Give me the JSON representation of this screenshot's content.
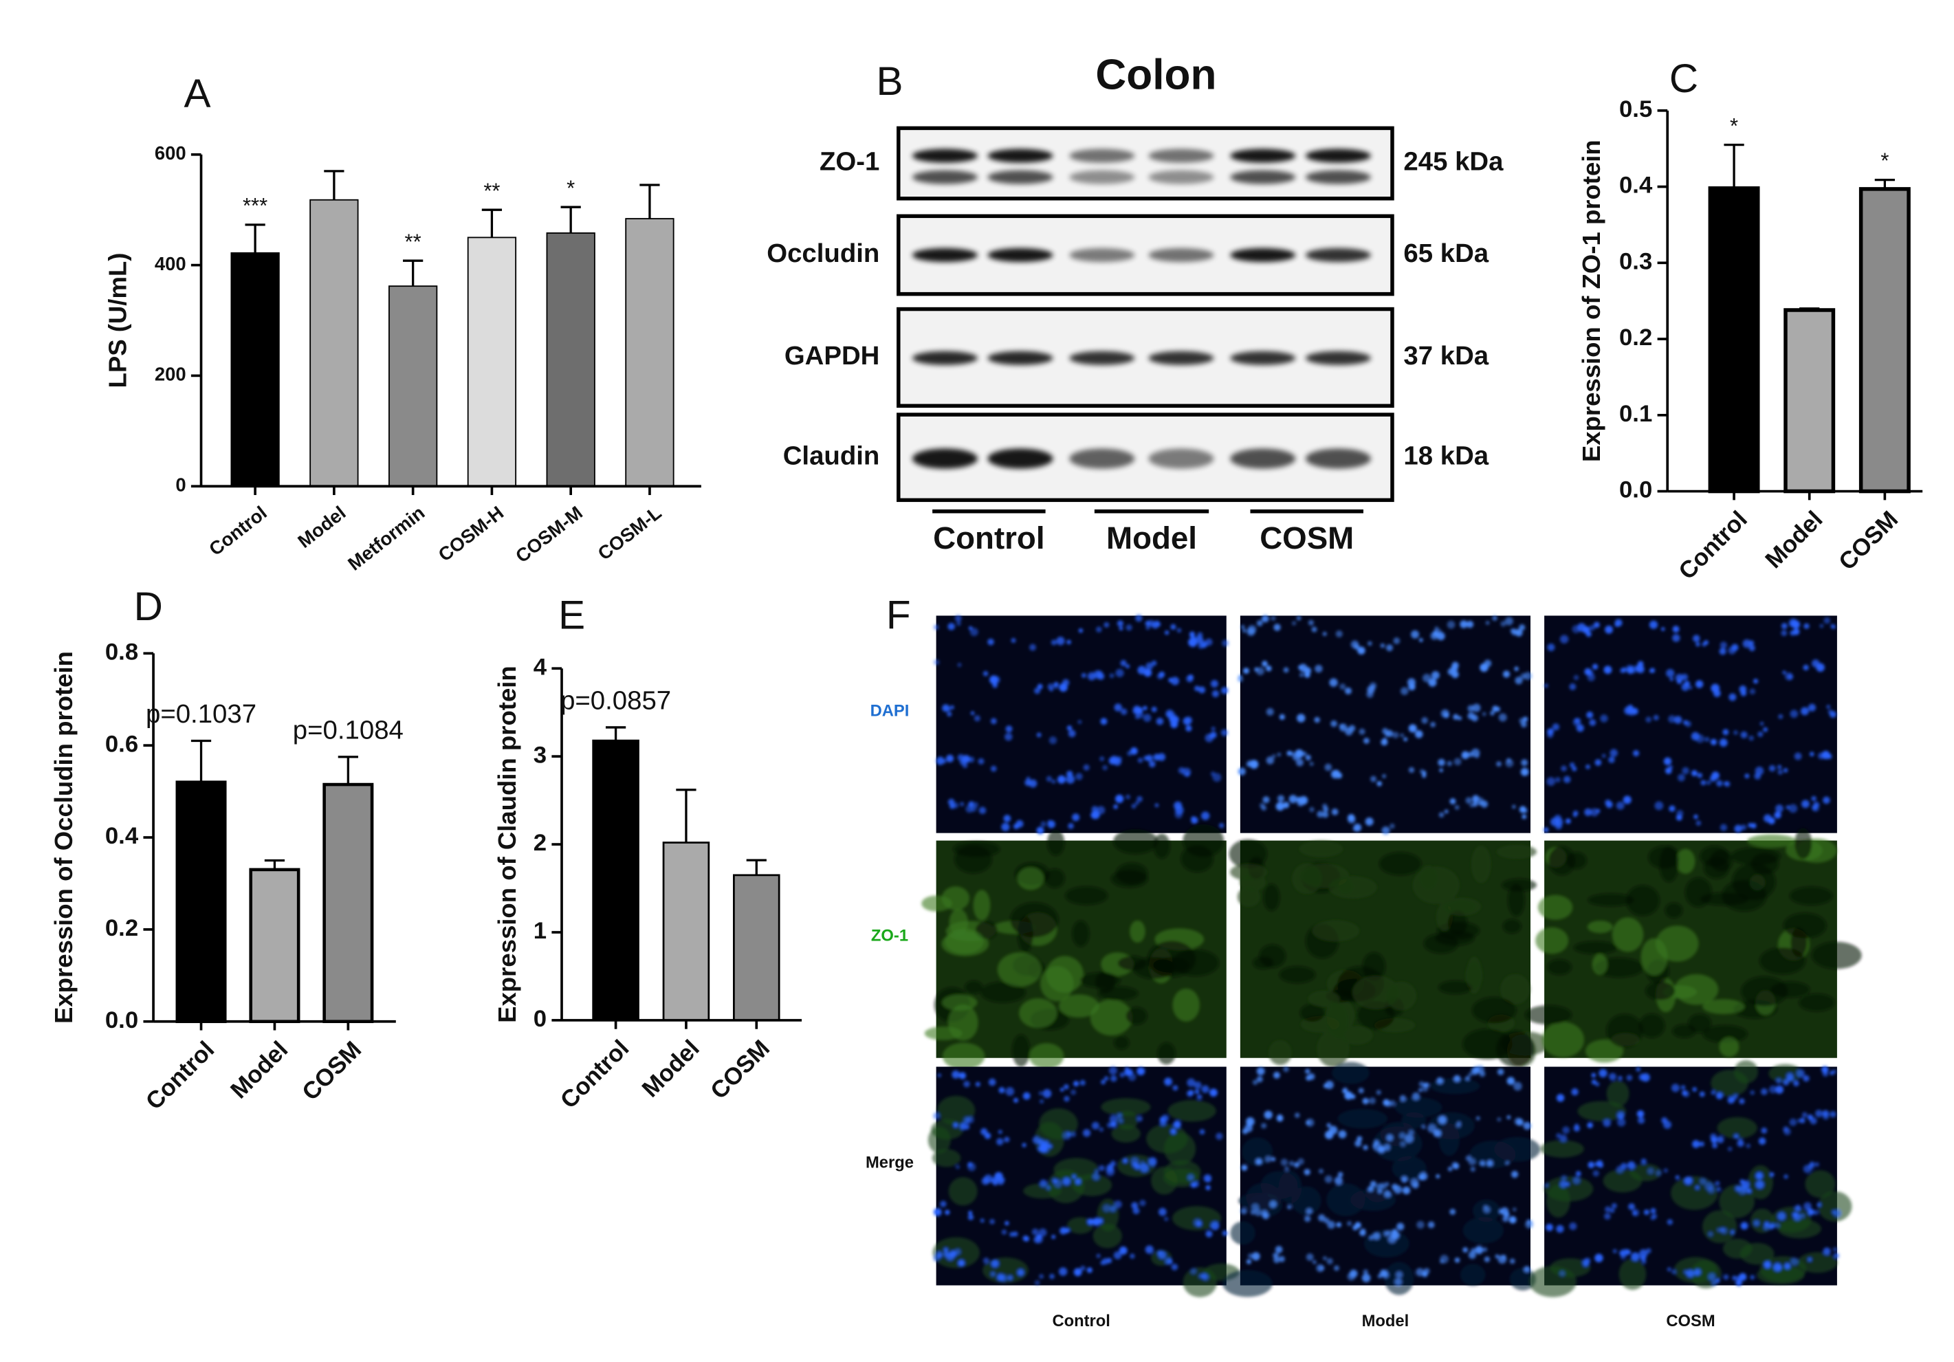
{
  "chart_data": [
    {
      "type": "bar",
      "panel_label": "A",
      "ylabel": "LPS (U/mL)",
      "categories": [
        "Control",
        "Model",
        "Metformin",
        "COSM-H",
        "COSM-M",
        "COSM-L"
      ],
      "values": [
        422,
        518,
        362,
        450,
        458,
        484
      ],
      "errors": [
        51,
        52,
        46,
        50,
        47,
        61
      ],
      "annotations": [
        "***",
        null,
        "**",
        "**",
        "*",
        null
      ],
      "colors": [
        "#000000",
        "#aaaaaa",
        "#8a8a8a",
        "#dcdcdc",
        "#6e6e6e",
        "#aaaaaa"
      ],
      "ylim": [
        0,
        600
      ],
      "yticks": [
        0,
        200,
        400,
        600
      ]
    },
    {
      "type": "bar",
      "panel_label": "C",
      "ylabel": "Expression of ZO-1 protein",
      "categories": [
        "Control",
        "Model",
        "COSM"
      ],
      "values": [
        0.398,
        0.238,
        0.397
      ],
      "errors": [
        0.057,
        0.002,
        0.012
      ],
      "annotations": [
        "*",
        null,
        "*"
      ],
      "colors": [
        "#000000",
        "#aaaaaa",
        "#8a8a8a"
      ],
      "ylim": [
        0,
        0.5
      ],
      "yticks": [
        {
          "value": 0,
          "label": "0.0"
        },
        0.1,
        0.2,
        0.3,
        0.4,
        0.5
      ]
    },
    {
      "type": "bar",
      "panel_label": "D",
      "ylabel": "Expression of Occludin protein",
      "categories": [
        "Control",
        "Model",
        "COSM"
      ],
      "values": [
        0.52,
        0.33,
        0.515
      ],
      "errors": [
        0.09,
        0.02,
        0.06
      ],
      "annotations": [
        "p=0.1037",
        null,
        "p=0.1084"
      ],
      "colors": [
        "#000000",
        "#aaaaaa",
        "#8a8a8a"
      ],
      "ylim": [
        0,
        0.8
      ],
      "yticks": [
        {
          "value": 0,
          "label": "0.0"
        },
        0.2,
        0.4,
        0.6,
        0.8
      ]
    },
    {
      "type": "bar",
      "panel_label": "E",
      "ylabel": "Expression of Claudin protein",
      "categories": [
        "Control",
        "Model",
        "COSM"
      ],
      "values": [
        3.18,
        2.02,
        1.65
      ],
      "errors": [
        0.15,
        0.6,
        0.17
      ],
      "annotations": [
        "p=0.0857",
        null,
        null
      ],
      "colors": [
        "#000000",
        "#aaaaaa",
        "#8a8a8a"
      ],
      "ylim": [
        0,
        4
      ],
      "yticks": [
        0,
        1,
        2,
        3,
        4
      ]
    }
  ],
  "blot": {
    "panel_label": "B",
    "title": "Colon",
    "rows": [
      {
        "protein": "ZO-1",
        "size": "245 kDa"
      },
      {
        "protein": "Occludin",
        "size": "65 kDa"
      },
      {
        "protein": "GAPDH",
        "size": "37 kDa"
      },
      {
        "protein": "Claudin",
        "size": "18 kDa"
      }
    ],
    "groups": [
      "Control",
      "Model",
      "COSM"
    ]
  },
  "microscopy": {
    "panel_label": "F",
    "rows": [
      "DAPI",
      "ZO-1",
      "Merge"
    ],
    "columns": [
      "Control",
      "Model",
      "COSM"
    ]
  }
}
